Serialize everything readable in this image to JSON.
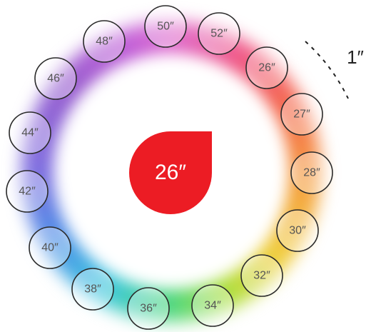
{
  "center": {
    "label": "26″"
  },
  "annotation": {
    "label": "1″"
  },
  "sizes": [
    "50″",
    "52″",
    "26″",
    "27″",
    "28″",
    "30″",
    "32″",
    "34″",
    "36″",
    "38″",
    "40″",
    "42″",
    "44″",
    "46″",
    "48″"
  ]
}
